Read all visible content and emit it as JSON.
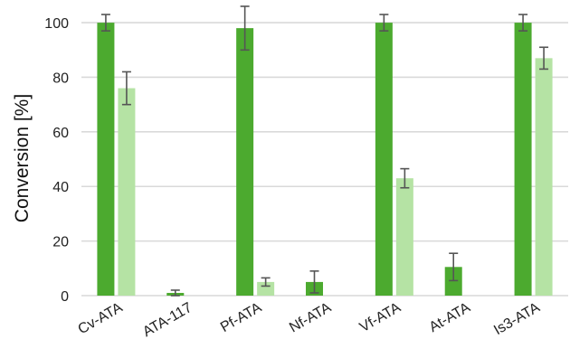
{
  "chart_data": {
    "type": "bar",
    "categories": [
      "Cv-ATA",
      "ATA-117",
      "Pf-ATA",
      "Nf-ATA",
      "Vf-ATA",
      "At-ATA",
      "Is3-ATA"
    ],
    "series": [
      {
        "color": "#4caa2f",
        "values": [
          100,
          1,
          98,
          5,
          100,
          10.5,
          100
        ],
        "errors": [
          3,
          1,
          8,
          4,
          3,
          5,
          3
        ]
      },
      {
        "color": "#b5e3a4",
        "values": [
          76,
          0,
          5,
          0,
          43,
          0,
          87
        ],
        "errors": [
          6,
          0,
          1.5,
          0,
          3.5,
          0,
          4
        ]
      }
    ],
    "xlabel": "",
    "ylabel": "Conversion [%]",
    "ylim": [
      0,
      105
    ],
    "yticks": [
      0,
      20,
      40,
      60,
      80,
      100
    ],
    "grid": true,
    "legend": "none"
  }
}
